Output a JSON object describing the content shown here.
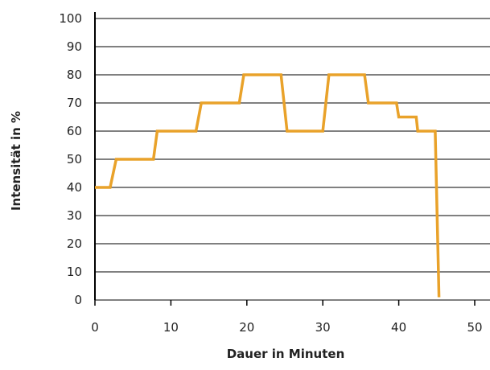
{
  "chart_data": {
    "type": "line",
    "title": "",
    "xlabel": "Dauer in Minuten",
    "ylabel": "Intensität in %",
    "xlim": [
      0,
      50
    ],
    "ylim": [
      0,
      100
    ],
    "xticks": [
      0,
      10,
      20,
      30,
      40,
      50
    ],
    "yticks": [
      0,
      10,
      20,
      30,
      40,
      50,
      60,
      70,
      80,
      90,
      100
    ],
    "grid": "horizontal",
    "legend": "none",
    "colors": {
      "series": "#e9a22a",
      "grid": "#000000"
    },
    "series": [
      {
        "x": [
          0,
          2,
          2.8,
          7.7,
          8.2,
          13.3,
          14,
          19,
          19.6,
          24.5,
          25.3,
          30,
          30.8,
          35.5,
          36,
          39.7,
          40,
          42.3,
          42.5,
          44.8,
          45.3
        ],
        "y": [
          40,
          40,
          50,
          50,
          60,
          60,
          70,
          70,
          80,
          80,
          60,
          60,
          80,
          80,
          70,
          70,
          65,
          65,
          60,
          60,
          1
        ]
      }
    ]
  }
}
